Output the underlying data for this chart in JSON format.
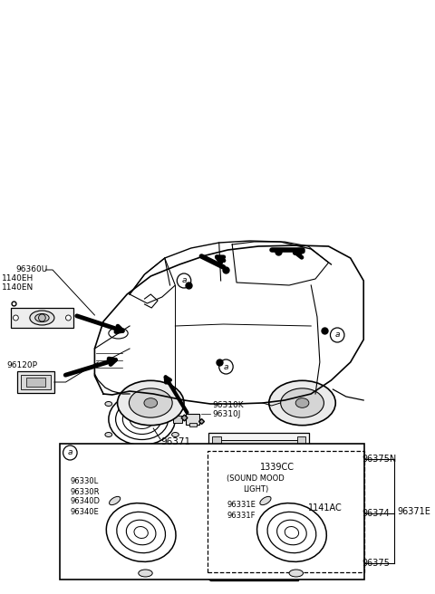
{
  "bg_color": "#ffffff",
  "line_color": "#000000",
  "amp_label": "96375",
  "bracket_label": "96374",
  "group_label": "96371E",
  "bolt_label": "1141AC",
  "plate_label": "96375N",
  "speaker_top_label": "96371",
  "screw_label": "1339CC",
  "tweeter_labels": [
    "1140EN",
    "1140EH",
    "96360U"
  ],
  "subwoofer_label": "96120P",
  "harness_label": "96310J",
  "harness_label2": "96310K",
  "inset_left_labels": [
    "96330L",
    "96330R",
    "96340D",
    "96340E"
  ],
  "inset_right_title": "(SOUND MOOD\nLIGHT)",
  "inset_right_labels": [
    "96331E",
    "96331F"
  ],
  "circle_a_label": "a"
}
